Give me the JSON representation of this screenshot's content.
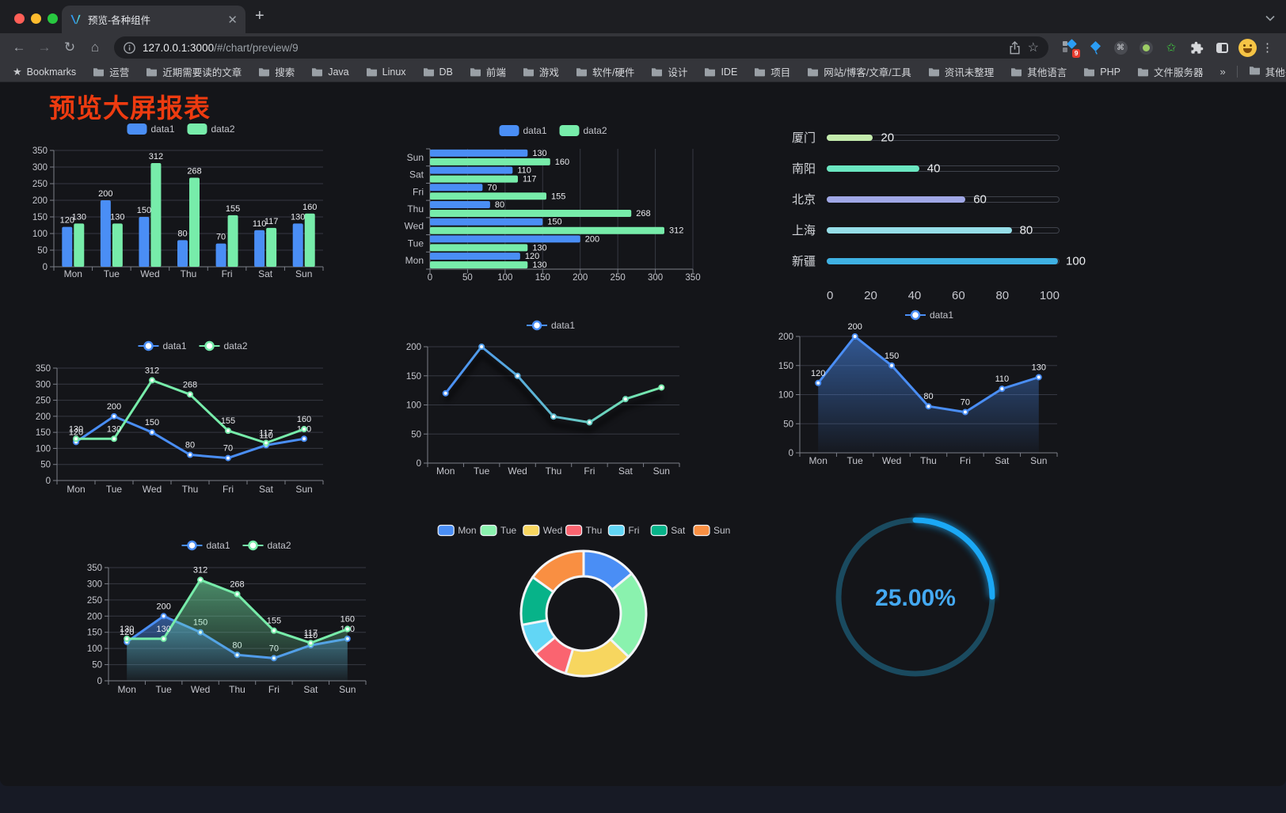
{
  "browser": {
    "tab_title": "预览-各种组件",
    "url_host": "127.0.0.1:3000",
    "url_path": "/#/chart/preview/9",
    "extension_badge": "9",
    "bookmarks_label": "Bookmarks",
    "bookmarks": [
      "运营",
      "近期需要读的文章",
      "搜索",
      "Java",
      "Linux",
      "DB",
      "前端",
      "游戏",
      "软件/硬件",
      "设计",
      "IDE",
      "项目",
      "网站/博客/文章/工具",
      "资讯未整理",
      "其他语言",
      "PHP",
      "文件服务器"
    ],
    "bookmarks_overflow": "»",
    "other_bookmarks": "其他书签"
  },
  "page": {
    "title": "预览大屏报表",
    "title_color": "#ee3b10",
    "background": "#141519"
  },
  "chart_data": [
    {
      "id": "bar-grouped",
      "type": "bar",
      "title": "",
      "legend": [
        "data1",
        "data2"
      ],
      "legend_position": "top",
      "categories": [
        "Mon",
        "Tue",
        "Wed",
        "Thu",
        "Fri",
        "Sat",
        "Sun"
      ],
      "series": [
        {
          "name": "data1",
          "color": "#4a8ef5",
          "values": [
            120,
            200,
            150,
            80,
            70,
            110,
            130
          ]
        },
        {
          "name": "data2",
          "color": "#77ecaa",
          "values": [
            130,
            130,
            312,
            268,
            155,
            117,
            160
          ]
        }
      ],
      "ylim": [
        0,
        350
      ],
      "yticks": [
        0,
        50,
        100,
        150,
        200,
        250,
        300,
        350
      ],
      "grid": true,
      "value_labels": true
    },
    {
      "id": "bar-horizontal",
      "type": "hbar",
      "title": "",
      "legend": [
        "data1",
        "data2"
      ],
      "legend_position": "top",
      "categories": [
        "Sun",
        "Sat",
        "Fri",
        "Thu",
        "Wed",
        "Tue",
        "Mon"
      ],
      "series": [
        {
          "name": "data1",
          "color": "#4a8ef5",
          "values": [
            130,
            110,
            70,
            80,
            150,
            200,
            120
          ]
        },
        {
          "name": "data2",
          "color": "#77ecaa",
          "values": [
            160,
            117,
            155,
            268,
            312,
            130,
            130
          ]
        }
      ],
      "xlim": [
        0,
        350
      ],
      "xticks": [
        0,
        50,
        100,
        150,
        200,
        250,
        300,
        350
      ],
      "grid": true,
      "value_labels": true
    },
    {
      "id": "progress",
      "type": "progress-bars",
      "title": "",
      "items": [
        {
          "label": "厦门",
          "value": 20,
          "color": "#c4ebad"
        },
        {
          "label": "南阳",
          "value": 40,
          "color": "#6be6c1"
        },
        {
          "label": "北京",
          "value": 60,
          "color": "#a0a7e6"
        },
        {
          "label": "上海",
          "value": 80,
          "color": "#96dee8"
        },
        {
          "label": "新疆",
          "value": 100,
          "color": "#3fb1e3"
        }
      ],
      "max": 100,
      "xticks": [
        0,
        20,
        40,
        60,
        80,
        100
      ]
    },
    {
      "id": "line-two",
      "type": "line",
      "title": "",
      "legend": [
        "data1",
        "data2"
      ],
      "legend_position": "top",
      "categories": [
        "Mon",
        "Tue",
        "Wed",
        "Thu",
        "Fri",
        "Sat",
        "Sun"
      ],
      "series": [
        {
          "name": "data1",
          "color": "#4a8ef5",
          "values": [
            120,
            200,
            150,
            80,
            70,
            110,
            130
          ]
        },
        {
          "name": "data2",
          "color": "#77ecaa",
          "values": [
            130,
            130,
            312,
            268,
            155,
            117,
            160
          ]
        }
      ],
      "ylim": [
        0,
        350
      ],
      "yticks": [
        0,
        50,
        100,
        150,
        200,
        250,
        300,
        350
      ],
      "grid": true,
      "value_labels": true
    },
    {
      "id": "line-gradient",
      "type": "line",
      "title": "",
      "legend": [
        "data1"
      ],
      "legend_position": "top",
      "categories": [
        "Mon",
        "Tue",
        "Wed",
        "Thu",
        "Fri",
        "Sat",
        "Sun"
      ],
      "series": [
        {
          "name": "data1",
          "gradient": [
            "#4a8ef5",
            "#77ecaa"
          ],
          "shadow": true,
          "values": [
            120,
            200,
            150,
            80,
            70,
            110,
            130
          ]
        }
      ],
      "ylim": [
        0,
        200
      ],
      "yticks": [
        0,
        50,
        100,
        150,
        200
      ],
      "grid": true,
      "value_labels": false
    },
    {
      "id": "area-single",
      "type": "line",
      "title": "",
      "legend": [
        "data1"
      ],
      "legend_position": "top",
      "categories": [
        "Mon",
        "Tue",
        "Wed",
        "Thu",
        "Fri",
        "Sat",
        "Sun"
      ],
      "series": [
        {
          "name": "data1",
          "color": "#4a8ef5",
          "area": true,
          "values": [
            120,
            200,
            150,
            80,
            70,
            110,
            130
          ]
        }
      ],
      "ylim": [
        0,
        200
      ],
      "yticks": [
        0,
        50,
        100,
        150,
        200
      ],
      "grid": true,
      "value_labels": true
    },
    {
      "id": "area-two",
      "type": "line",
      "title": "",
      "legend": [
        "data1",
        "data2"
      ],
      "legend_position": "top",
      "categories": [
        "Mon",
        "Tue",
        "Wed",
        "Thu",
        "Fri",
        "Sat",
        "Sun"
      ],
      "series": [
        {
          "name": "data1",
          "color": "#4a8ef5",
          "area": true,
          "values": [
            120,
            200,
            150,
            80,
            70,
            110,
            130
          ]
        },
        {
          "name": "data2",
          "color": "#77ecaa",
          "area": true,
          "values": [
            130,
            130,
            312,
            268,
            155,
            117,
            160
          ]
        }
      ],
      "ylim": [
        0,
        350
      ],
      "yticks": [
        0,
        50,
        100,
        150,
        200,
        250,
        300,
        350
      ],
      "grid": true,
      "value_labels": true
    },
    {
      "id": "donut",
      "type": "pie",
      "title": "",
      "legend": [
        "Mon",
        "Tue",
        "Wed",
        "Thu",
        "Fri",
        "Sat",
        "Sun"
      ],
      "legend_position": "top",
      "labels": [
        "Mon",
        "Tue",
        "Wed",
        "Thu",
        "Fri",
        "Sat",
        "Sun"
      ],
      "values": [
        120,
        200,
        150,
        80,
        70,
        110,
        130
      ],
      "colors": [
        "#4a8ef5",
        "#8af2ae",
        "#f7d65f",
        "#fa6470",
        "#62d6f5",
        "#07b389",
        "#f98f42"
      ],
      "donut": true,
      "slice_border_color": "#f2f4f7"
    },
    {
      "id": "gauge",
      "type": "gauge",
      "title": "",
      "percent": 25,
      "label": "25.00%",
      "color": "#1ba8f5",
      "track_color": "#1a4a5f",
      "text_color": "#44a9f2"
    }
  ]
}
